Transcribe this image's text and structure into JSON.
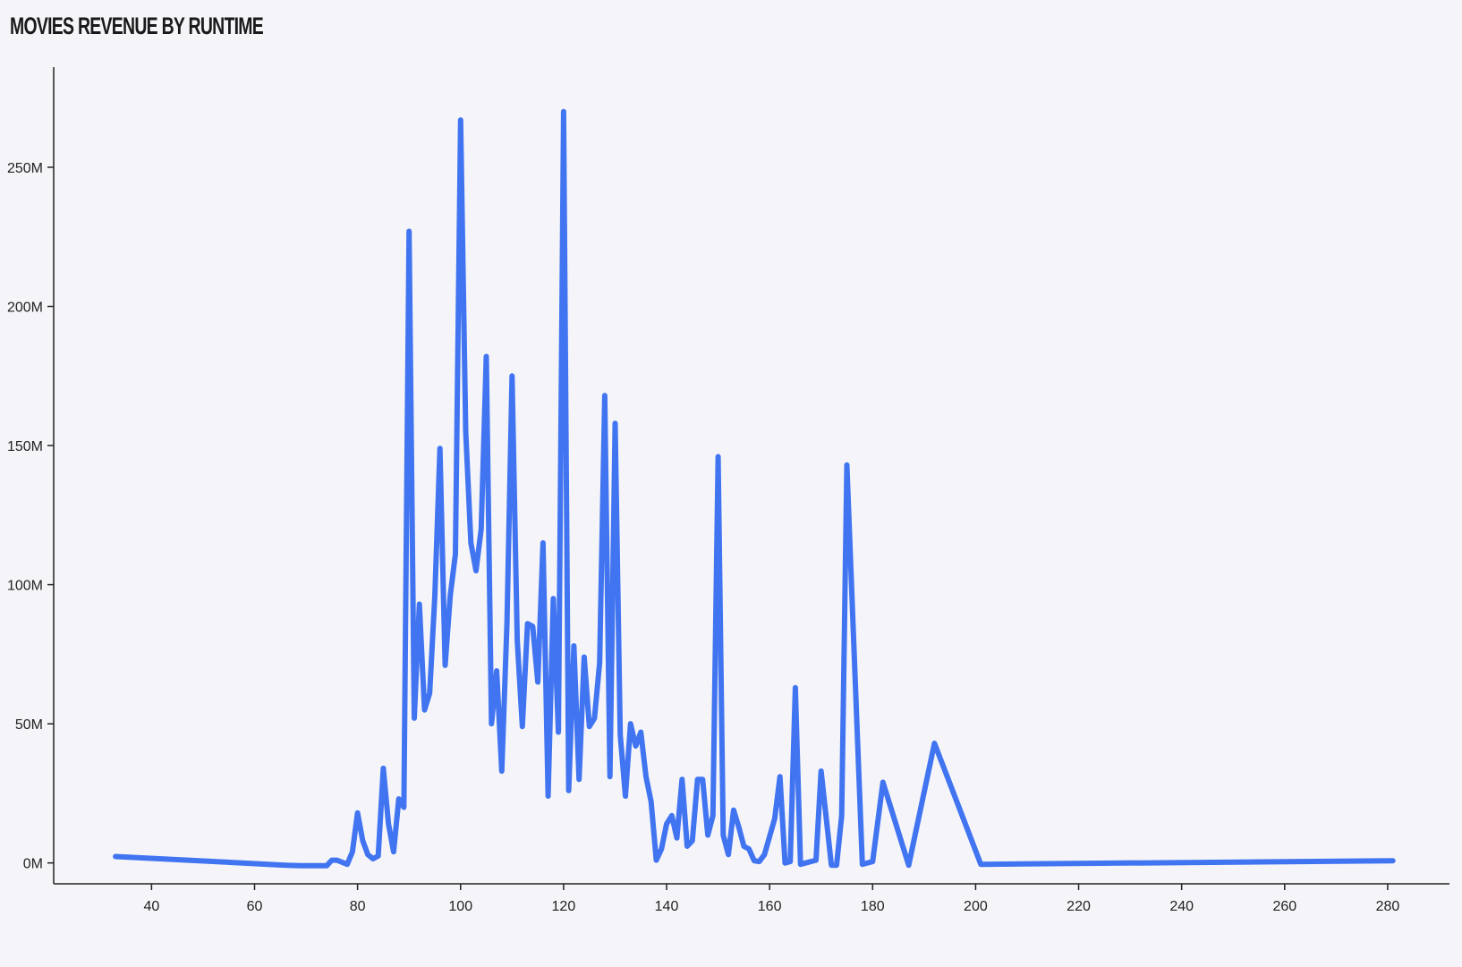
{
  "chart_data": {
    "type": "line",
    "title": "MOVIES REVENUE BY RUNTIME",
    "xlabel": "",
    "ylabel": "",
    "xlim": [
      21,
      292
    ],
    "ylim": [
      -7.5,
      286
    ],
    "y_unit_suffix": "M",
    "x_ticks": [
      40,
      60,
      80,
      100,
      120,
      140,
      160,
      180,
      200,
      220,
      240,
      260,
      280
    ],
    "y_ticks": [
      0,
      50,
      100,
      150,
      200,
      250
    ],
    "grid": false,
    "legend": "none",
    "series": [
      {
        "color": "#4174f0",
        "points": [
          [
            33,
            2.3
          ],
          [
            66,
            -0.8
          ],
          [
            69,
            -1
          ],
          [
            74,
            -1
          ],
          [
            75,
            1
          ],
          [
            76,
            1
          ],
          [
            78,
            -0.5
          ],
          [
            79,
            4
          ],
          [
            80,
            18
          ],
          [
            81,
            8
          ],
          [
            82,
            3
          ],
          [
            83,
            1.5
          ],
          [
            84,
            2.5
          ],
          [
            85,
            34
          ],
          [
            86,
            14
          ],
          [
            87,
            4
          ],
          [
            88,
            23
          ],
          [
            89,
            20
          ],
          [
            90,
            227
          ],
          [
            91,
            52
          ],
          [
            92,
            93
          ],
          [
            93,
            55
          ],
          [
            94,
            61
          ],
          [
            95,
            96
          ],
          [
            96,
            149
          ],
          [
            97,
            71
          ],
          [
            98,
            96
          ],
          [
            99,
            111
          ],
          [
            100,
            267
          ],
          [
            101,
            155
          ],
          [
            102,
            115
          ],
          [
            103,
            105
          ],
          [
            104,
            120
          ],
          [
            105,
            182
          ],
          [
            106,
            50
          ],
          [
            107,
            69
          ],
          [
            108,
            33
          ],
          [
            109,
            86
          ],
          [
            110,
            175
          ],
          [
            111,
            80
          ],
          [
            112,
            49
          ],
          [
            113,
            86
          ],
          [
            114,
            85
          ],
          [
            115,
            65
          ],
          [
            116,
            115
          ],
          [
            117,
            24
          ],
          [
            118,
            95
          ],
          [
            119,
            47
          ],
          [
            120,
            270
          ],
          [
            121,
            26
          ],
          [
            122,
            78
          ],
          [
            123,
            30
          ],
          [
            124,
            74
          ],
          [
            125,
            49
          ],
          [
            126,
            52
          ],
          [
            127,
            72
          ],
          [
            128,
            168
          ],
          [
            129,
            31
          ],
          [
            130,
            158
          ],
          [
            131,
            46
          ],
          [
            132,
            24
          ],
          [
            133,
            50
          ],
          [
            134,
            42
          ],
          [
            135,
            47
          ],
          [
            136,
            31
          ],
          [
            137,
            22
          ],
          [
            138,
            1
          ],
          [
            139,
            5
          ],
          [
            140,
            14
          ],
          [
            141,
            17
          ],
          [
            142,
            9
          ],
          [
            143,
            30
          ],
          [
            144,
            6
          ],
          [
            145,
            8
          ],
          [
            146,
            30
          ],
          [
            147,
            30
          ],
          [
            148,
            10
          ],
          [
            149,
            17
          ],
          [
            150,
            146
          ],
          [
            151,
            10
          ],
          [
            152,
            3
          ],
          [
            153,
            19
          ],
          [
            154,
            13
          ],
          [
            155,
            6
          ],
          [
            156,
            5
          ],
          [
            157,
            0.8
          ],
          [
            158,
            0.5
          ],
          [
            159,
            3
          ],
          [
            161,
            16
          ],
          [
            162,
            31
          ],
          [
            163,
            0
          ],
          [
            164,
            0.5
          ],
          [
            165,
            63
          ],
          [
            166,
            -0.5
          ],
          [
            169,
            1
          ],
          [
            170,
            33
          ],
          [
            172,
            -0.8
          ],
          [
            173,
            -0.8
          ],
          [
            174,
            17
          ],
          [
            175,
            143
          ],
          [
            178,
            -0.5
          ],
          [
            180,
            0.5
          ],
          [
            182,
            29
          ],
          [
            187,
            -0.8
          ],
          [
            192,
            43
          ],
          [
            201,
            -0.5
          ],
          [
            281,
            0.8
          ]
        ]
      }
    ]
  }
}
